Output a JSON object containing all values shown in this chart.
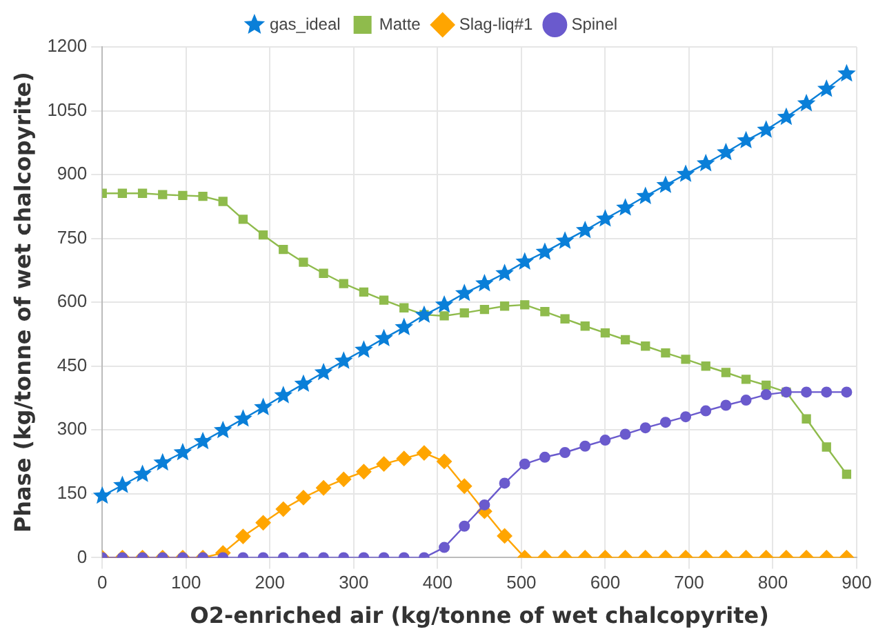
{
  "chart_data": {
    "type": "line",
    "xlabel": "O2-enriched air (kg/tonne of wet chalcopyrite)",
    "ylabel": "Phase (kg/tonne of wet chalcopyrite)",
    "x": [
      0,
      24,
      48,
      72,
      96,
      120,
      144,
      168,
      192,
      216,
      240,
      264,
      288,
      312,
      336,
      360,
      384,
      408,
      432,
      456,
      480,
      504,
      528,
      552,
      576,
      600,
      624,
      648,
      672,
      696,
      720,
      744,
      768,
      792,
      816,
      840,
      864,
      888
    ],
    "xlim": [
      0,
      900
    ],
    "xticks": [
      0,
      100,
      200,
      300,
      400,
      500,
      600,
      700,
      800,
      900
    ],
    "ylim": [
      0,
      1200
    ],
    "yticks": [
      0,
      150,
      300,
      450,
      600,
      750,
      900,
      1050,
      1200
    ],
    "grid": true,
    "legend": "top",
    "series": [
      {
        "name": "gas_ideal",
        "color": "#0a7fd8",
        "marker": "star",
        "values": [
          145,
          170,
          196,
          223,
          247,
          273,
          299,
          326,
          353,
          381,
          408,
          435,
          462,
          488,
          515,
          541,
          570,
          594,
          621,
          644,
          668,
          695,
          718,
          744,
          769,
          796,
          822,
          849,
          875,
          901,
          926,
          952,
          980,
          1005,
          1035,
          1067,
          1101,
          1137
        ]
      },
      {
        "name": "Matte",
        "color": "#8fbb4c",
        "marker": "square",
        "values": [
          856,
          856,
          856,
          853,
          851,
          849,
          837,
          795,
          758,
          724,
          694,
          668,
          644,
          624,
          605,
          587,
          571,
          568,
          575,
          583,
          591,
          594,
          578,
          561,
          544,
          528,
          512,
          497,
          481,
          466,
          450,
          435,
          419,
          405,
          389,
          326,
          260,
          196
        ]
      },
      {
        "name": "Slag-liq#1",
        "color": "#ffa500",
        "marker": "diamond",
        "values": [
          0,
          0,
          0,
          0,
          0,
          0,
          11,
          50,
          82,
          114,
          141,
          164,
          184,
          202,
          220,
          233,
          246,
          226,
          168,
          109,
          51,
          0,
          0,
          0,
          0,
          0,
          0,
          0,
          0,
          0,
          0,
          0,
          0,
          0,
          0,
          0,
          0,
          0
        ]
      },
      {
        "name": "Spinel",
        "color": "#6a5acd",
        "marker": "circle",
        "values": [
          0,
          0,
          0,
          0,
          0,
          0,
          0,
          0,
          0,
          0,
          0,
          0,
          0,
          0,
          0,
          0,
          0,
          24,
          74,
          124,
          175,
          220,
          236,
          247,
          262,
          276,
          290,
          305,
          318,
          331,
          345,
          358,
          370,
          383,
          389,
          389,
          389,
          389
        ]
      }
    ]
  }
}
